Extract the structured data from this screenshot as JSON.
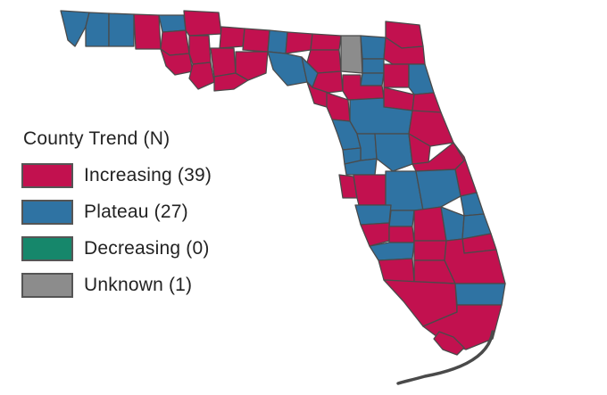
{
  "legend": {
    "title": "County Trend (N)",
    "items": [
      {
        "label": "Increasing (39)",
        "color": "#c2114f"
      },
      {
        "label": "Plateau (27)",
        "color": "#2f73a3"
      },
      {
        "label": "Decreasing (0)",
        "color": "#16876b"
      },
      {
        "label": "Unknown (1)",
        "color": "#8c8c8c"
      }
    ]
  },
  "colors": {
    "increasing": "#c2114f",
    "plateau": "#2f73a3",
    "decreasing": "#16876b",
    "unknown": "#8c8c8c",
    "border": "#4a4a4a"
  }
}
